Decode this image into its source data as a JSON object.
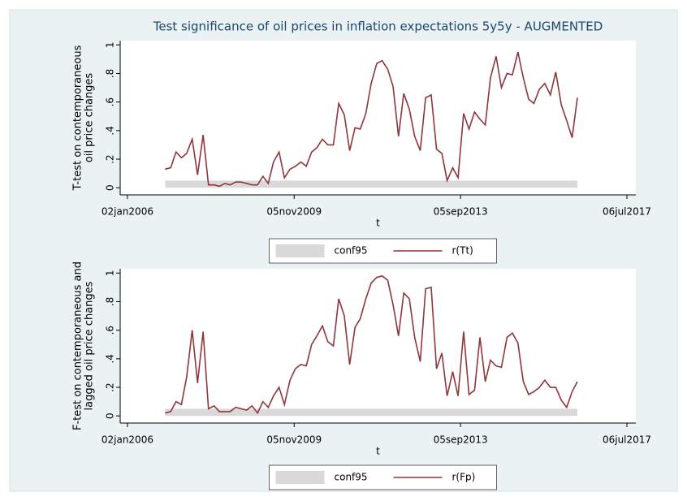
{
  "chart_data": [
    {
      "type": "line",
      "title": "Test significance of oil prices in inflation expectations 5y5y - AUGMENTED",
      "xlabel": "t",
      "ylabel": [
        "T-test on contemporaneous",
        "oil price changes"
      ],
      "x": [
        "2006-11-15",
        "2007-01-01",
        "2007-02-15",
        "2007-04-01",
        "2007-05-15",
        "2007-07-01",
        "2007-08-15",
        "2007-10-01",
        "2007-11-15",
        "2008-01-01",
        "2008-02-15",
        "2008-04-01",
        "2008-05-15",
        "2008-07-01",
        "2008-08-15",
        "2008-10-01",
        "2008-11-15",
        "2009-01-01",
        "2009-02-15",
        "2009-04-01",
        "2009-05-15",
        "2009-07-01",
        "2009-08-15",
        "2009-10-01",
        "2009-11-15",
        "2010-01-01",
        "2010-02-15",
        "2010-04-01",
        "2010-05-15",
        "2010-07-01",
        "2010-08-15",
        "2010-10-01",
        "2010-11-15",
        "2011-01-01",
        "2011-02-15",
        "2011-04-01",
        "2011-05-15",
        "2011-07-01",
        "2011-08-15",
        "2011-10-01",
        "2011-11-15",
        "2012-01-01",
        "2012-02-15",
        "2012-04-01",
        "2012-05-15",
        "2012-07-01",
        "2012-08-15",
        "2012-10-01",
        "2012-11-15",
        "2013-01-01",
        "2013-02-15",
        "2013-04-01",
        "2013-05-15",
        "2013-07-01",
        "2013-08-15",
        "2013-10-01",
        "2013-11-15",
        "2014-01-01",
        "2014-02-15",
        "2014-04-01",
        "2014-05-15",
        "2014-07-01",
        "2014-08-15",
        "2014-10-01",
        "2014-11-15",
        "2015-01-01",
        "2015-02-15",
        "2015-04-01",
        "2015-05-15",
        "2015-07-01",
        "2015-08-15",
        "2015-10-01",
        "2015-11-15",
        "2016-01-01",
        "2016-02-15",
        "2016-04-01",
        "2016-05-15"
      ],
      "series": [
        {
          "name": "conf95",
          "type": "area",
          "color": "#d9d9d9",
          "values": [
            0.05,
            0.05,
            0.05,
            0.05,
            0.05,
            0.05,
            0.05,
            0.05,
            0.05,
            0.05,
            0.05,
            0.05,
            0.05,
            0.05,
            0.05,
            0.05,
            0.05,
            0.05,
            0.05,
            0.05,
            0.05,
            0.05,
            0.05,
            0.05,
            0.05,
            0.05,
            0.05,
            0.05,
            0.05,
            0.05,
            0.05,
            0.05,
            0.05,
            0.05,
            0.05,
            0.05,
            0.05,
            0.05,
            0.05,
            0.05,
            0.05,
            0.05,
            0.05,
            0.05,
            0.05,
            0.05,
            0.05,
            0.05,
            0.05,
            0.05,
            0.05,
            0.05,
            0.05,
            0.05,
            0.05,
            0.05,
            0.05,
            0.05,
            0.05,
            0.05,
            0.05,
            0.05,
            0.05,
            0.05,
            0.05,
            0.05,
            0.05,
            0.05,
            0.05,
            0.05,
            0.05,
            0.05,
            0.05,
            0.05,
            0.05,
            0.05,
            0.05
          ]
        },
        {
          "name": "r(Tt)",
          "type": "line",
          "color": "#90353b",
          "values": [
            0.13,
            0.14,
            0.25,
            0.21,
            0.24,
            0.34,
            0.09,
            0.37,
            0.02,
            0.02,
            0.01,
            0.03,
            0.02,
            0.04,
            0.04,
            0.03,
            0.02,
            0.02,
            0.08,
            0.03,
            0.18,
            0.25,
            0.07,
            0.13,
            0.15,
            0.18,
            0.15,
            0.25,
            0.28,
            0.34,
            0.3,
            0.3,
            0.59,
            0.51,
            0.26,
            0.42,
            0.41,
            0.52,
            0.73,
            0.87,
            0.89,
            0.83,
            0.71,
            0.36,
            0.66,
            0.55,
            0.36,
            0.26,
            0.63,
            0.65,
            0.27,
            0.24,
            0.05,
            0.14,
            0.07,
            0.52,
            0.41,
            0.53,
            0.48,
            0.44,
            0.77,
            0.92,
            0.7,
            0.8,
            0.79,
            0.95,
            0.77,
            0.62,
            0.59,
            0.69,
            0.73,
            0.65,
            0.81,
            0.58,
            0.47,
            0.35,
            0.63
          ]
        }
      ],
      "xlim": [
        "2005-11-02",
        "2017-09-19"
      ],
      "xticks": [
        {
          "value": "2006-01-02",
          "label": "02jan2006"
        },
        {
          "value": "2009-11-05",
          "label": "05nov2009"
        },
        {
          "value": "2013-09-05",
          "label": "05sep2013"
        },
        {
          "value": "2017-07-06",
          "label": "06jul2017"
        }
      ],
      "ylim": [
        -0.05,
        1.03
      ],
      "yticks": [
        0,
        {
          "value": 0.2,
          "label": ".2"
        },
        {
          "value": 0.4,
          "label": ".4"
        },
        {
          "value": 0.6,
          "label": ".6"
        },
        {
          "value": 0.8,
          "label": ".8"
        },
        1
      ],
      "legend": "bottom"
    },
    {
      "type": "line",
      "xlabel": "t",
      "ylabel": [
        "F-test on contemporaneous and",
        "lagged oil price changes"
      ],
      "x": [
        "2006-11-15",
        "2007-01-01",
        "2007-02-15",
        "2007-04-01",
        "2007-05-15",
        "2007-07-01",
        "2007-08-15",
        "2007-10-01",
        "2007-11-15",
        "2008-01-01",
        "2008-02-15",
        "2008-04-01",
        "2008-05-15",
        "2008-07-01",
        "2008-08-15",
        "2008-10-01",
        "2008-11-15",
        "2009-01-01",
        "2009-02-15",
        "2009-04-01",
        "2009-05-15",
        "2009-07-01",
        "2009-08-15",
        "2009-10-01",
        "2009-11-15",
        "2010-01-01",
        "2010-02-15",
        "2010-04-01",
        "2010-05-15",
        "2010-07-01",
        "2010-08-15",
        "2010-10-01",
        "2010-11-15",
        "2011-01-01",
        "2011-02-15",
        "2011-04-01",
        "2011-05-15",
        "2011-07-01",
        "2011-08-15",
        "2011-10-01",
        "2011-11-15",
        "2012-01-01",
        "2012-02-15",
        "2012-04-01",
        "2012-05-15",
        "2012-07-01",
        "2012-08-15",
        "2012-10-01",
        "2012-11-15",
        "2013-01-01",
        "2013-02-15",
        "2013-04-01",
        "2013-05-15",
        "2013-07-01",
        "2013-08-15",
        "2013-10-01",
        "2013-11-15",
        "2014-01-01",
        "2014-02-15",
        "2014-04-01",
        "2014-05-15",
        "2014-07-01",
        "2014-08-15",
        "2014-10-01",
        "2014-11-15",
        "2015-01-01",
        "2015-02-15",
        "2015-04-01",
        "2015-05-15",
        "2015-07-01",
        "2015-08-15",
        "2015-10-01",
        "2015-11-15",
        "2016-01-01",
        "2016-02-15",
        "2016-04-01",
        "2016-05-15"
      ],
      "series": [
        {
          "name": "conf95",
          "type": "area",
          "color": "#d9d9d9",
          "values": [
            0.05,
            0.05,
            0.05,
            0.05,
            0.05,
            0.05,
            0.05,
            0.05,
            0.05,
            0.05,
            0.05,
            0.05,
            0.05,
            0.05,
            0.05,
            0.05,
            0.05,
            0.05,
            0.05,
            0.05,
            0.05,
            0.05,
            0.05,
            0.05,
            0.05,
            0.05,
            0.05,
            0.05,
            0.05,
            0.05,
            0.05,
            0.05,
            0.05,
            0.05,
            0.05,
            0.05,
            0.05,
            0.05,
            0.05,
            0.05,
            0.05,
            0.05,
            0.05,
            0.05,
            0.05,
            0.05,
            0.05,
            0.05,
            0.05,
            0.05,
            0.05,
            0.05,
            0.05,
            0.05,
            0.05,
            0.05,
            0.05,
            0.05,
            0.05,
            0.05,
            0.05,
            0.05,
            0.05,
            0.05,
            0.05,
            0.05,
            0.05,
            0.05,
            0.05,
            0.05,
            0.05,
            0.05,
            0.05,
            0.05,
            0.05,
            0.05,
            0.05
          ]
        },
        {
          "name": "r(Fp)",
          "type": "line",
          "color": "#90353b",
          "values": [
            0.02,
            0.03,
            0.1,
            0.08,
            0.27,
            0.6,
            0.23,
            0.59,
            0.05,
            0.07,
            0.03,
            0.03,
            0.03,
            0.06,
            0.05,
            0.04,
            0.07,
            0.02,
            0.1,
            0.06,
            0.14,
            0.2,
            0.08,
            0.25,
            0.33,
            0.36,
            0.35,
            0.5,
            0.56,
            0.63,
            0.52,
            0.49,
            0.82,
            0.7,
            0.36,
            0.62,
            0.68,
            0.82,
            0.93,
            0.97,
            0.98,
            0.95,
            0.78,
            0.56,
            0.86,
            0.82,
            0.55,
            0.38,
            0.89,
            0.9,
            0.33,
            0.44,
            0.14,
            0.31,
            0.14,
            0.59,
            0.15,
            0.18,
            0.55,
            0.24,
            0.39,
            0.35,
            0.34,
            0.55,
            0.58,
            0.51,
            0.24,
            0.15,
            0.17,
            0.2,
            0.25,
            0.2,
            0.2,
            0.11,
            0.06,
            0.17,
            0.24
          ]
        }
      ],
      "xlim": [
        "2005-11-02",
        "2017-09-19"
      ],
      "xticks": [
        {
          "value": "2006-01-02",
          "label": "02jan2006"
        },
        {
          "value": "2009-11-05",
          "label": "05nov2009"
        },
        {
          "value": "2013-09-05",
          "label": "05sep2013"
        },
        {
          "value": "2017-07-06",
          "label": "06jul2017"
        }
      ],
      "ylim": [
        -0.05,
        1.03
      ],
      "yticks": [
        0,
        {
          "value": 0.2,
          "label": ".2"
        },
        {
          "value": 0.4,
          "label": ".4"
        },
        {
          "value": 0.6,
          "label": ".6"
        },
        {
          "value": 0.8,
          "label": ".8"
        },
        1
      ],
      "legend": "bottom"
    }
  ]
}
